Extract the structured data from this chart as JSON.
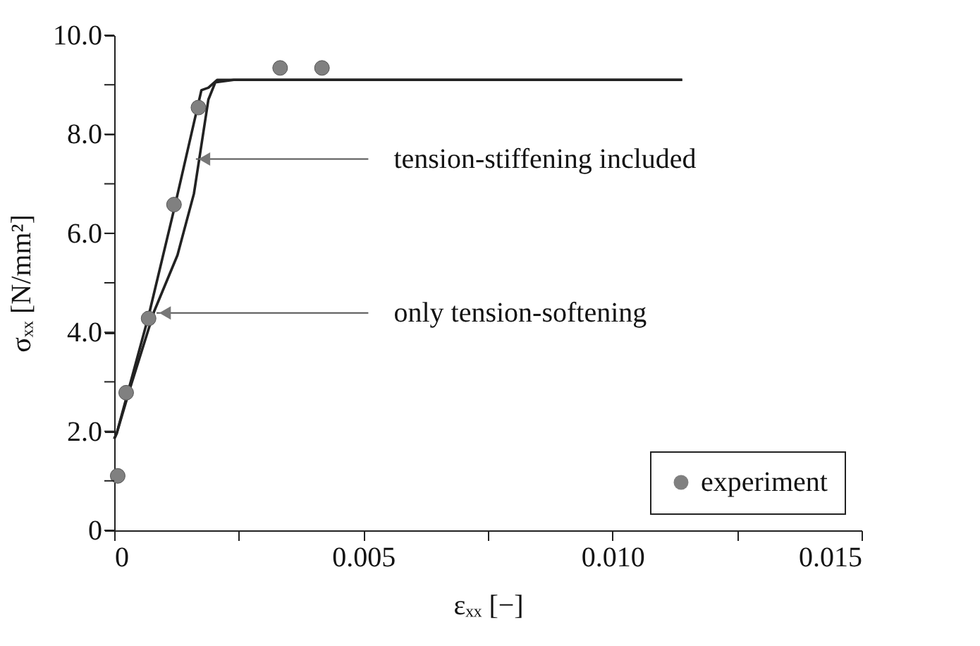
{
  "chart_data": {
    "type": "line",
    "xlabel": "εₓₓ [−]",
    "ylabel": "σₓₓ [N/mm²]",
    "xlim": [
      0,
      0.015
    ],
    "xticks": [
      0,
      {
        "value": 0.0025,
        "label": null
      },
      0.005,
      {
        "value": 0.0075,
        "label": null
      },
      {
        "value": 0.01,
        "label": "0.010"
      },
      {
        "value": 0.0125,
        "label": null
      },
      0.015
    ],
    "ylim": [
      0,
      10
    ],
    "yticks": [
      0,
      {
        "value": 1,
        "label": null
      },
      {
        "value": 2,
        "label": "2.0"
      },
      {
        "value": 3,
        "label": null
      },
      {
        "value": 4,
        "label": "4.0"
      },
      {
        "value": 5,
        "label": null
      },
      {
        "value": 6,
        "label": "6.0"
      },
      {
        "value": 7,
        "label": null
      },
      {
        "value": 8,
        "label": "8.0"
      },
      {
        "value": 9,
        "label": null
      },
      {
        "value": 10,
        "label": "10.0"
      }
    ],
    "grid": false,
    "legend": "bottom right",
    "series": [
      {
        "color": "#222222",
        "marker": "none",
        "line_style": "solid",
        "x": [
          0,
          5e-05,
          0.00069,
          0.00121,
          0.00175,
          0.00189,
          0.00207,
          0.0114
        ],
        "values": [
          1.85,
          1.96,
          4.33,
          6.52,
          8.89,
          8.94,
          9.1,
          9.1
        ]
      },
      {
        "color": "#222222",
        "marker": "none",
        "line_style": "solid",
        "x": [
          0,
          5e-05,
          0.00033,
          0.0008,
          0.00127,
          0.0016,
          0.00189,
          0.00203,
          0.0024,
          0.0114
        ],
        "values": [
          1.85,
          1.96,
          2.91,
          4.42,
          5.56,
          6.8,
          8.7,
          9.05,
          9.1,
          9.1
        ]
      },
      {
        "type": "scatter",
        "name": "experiment",
        "color": "#808080",
        "marker": "circle",
        "x": [
          7e-05,
          0.00024,
          0.00069,
          0.0012,
          0.00169,
          0.00333,
          0.00417
        ],
        "values": [
          1.1,
          2.78,
          4.28,
          6.58,
          8.54,
          9.34,
          9.34
        ]
      }
    ],
    "annotations": [
      {
        "text": "tension-stiffening included",
        "x": 0.00164,
        "y": 7.5
      },
      {
        "text": "only tension-softening",
        "x": 0.00085,
        "y": 4.39
      }
    ]
  }
}
